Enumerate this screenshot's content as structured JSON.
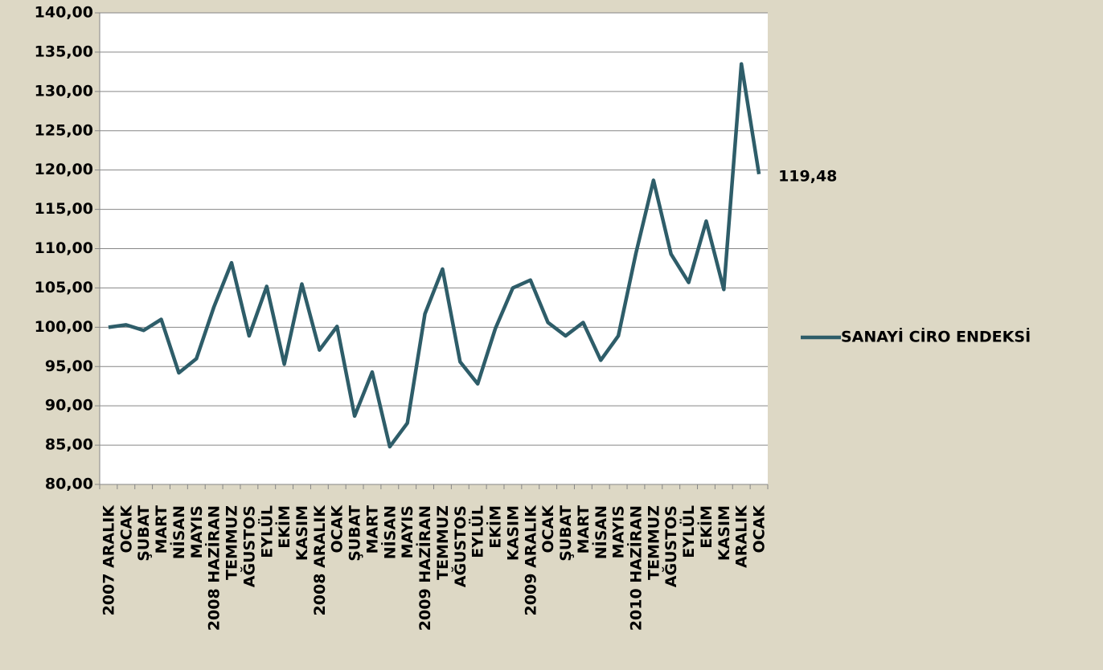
{
  "chart_data": {
    "type": "line",
    "categories": [
      "2007 ARALIK",
      "OCAK",
      "ŞUBAT",
      "MART",
      "NİSAN",
      "MAYIS",
      "2008 HAZİRAN",
      "TEMMUZ",
      "AĞUSTOS",
      "EYLÜL",
      "EKİM",
      "KASIM",
      "2008 ARALIK",
      "OCAK",
      "ŞUBAT",
      "MART",
      "NİSAN",
      "MAYIS",
      "2009 HAZİRAN",
      "TEMMUZ",
      "AĞUSTOS",
      "EYLÜL",
      "EKİM",
      "KASIM",
      "2009 ARALIK",
      "OCAK",
      "ŞUBAT",
      "MART",
      "NİSAN",
      "MAYIS",
      "2010 HAZİRAN",
      "TEMMUZ",
      "AĞUSTOS",
      "EYLÜL",
      "EKİM",
      "KASIM",
      "ARALIK",
      "OCAK"
    ],
    "series": [
      {
        "name": "SANAYİ CİRO ENDEKSİ",
        "color": "#2e5d69",
        "values": [
          100.0,
          100.3,
          99.6,
          101.0,
          94.2,
          96.0,
          102.6,
          108.2,
          98.9,
          105.2,
          95.3,
          105.5,
          97.1,
          100.1,
          88.7,
          94.3,
          84.8,
          87.8,
          101.7,
          107.4,
          95.6,
          92.8,
          99.8,
          105.0,
          106.0,
          100.6,
          98.9,
          100.6,
          95.8,
          98.9,
          109.4,
          118.7,
          109.3,
          105.7,
          113.5,
          104.8,
          133.5,
          119.48
        ],
        "value_labels": {
          "37": "119,48"
        }
      }
    ],
    "ylim": [
      80,
      140
    ],
    "yticks": [
      {
        "value": 80,
        "label": "80,00"
      },
      {
        "value": 85,
        "label": "85,00"
      },
      {
        "value": 90,
        "label": "90,00"
      },
      {
        "value": 95,
        "label": "95,00"
      },
      {
        "value": 100,
        "label": "100,00"
      },
      {
        "value": 105,
        "label": "105,00"
      },
      {
        "value": 110,
        "label": "110,00"
      },
      {
        "value": 115,
        "label": "115,00"
      },
      {
        "value": 120,
        "label": "120,00"
      },
      {
        "value": 125,
        "label": "125,00"
      },
      {
        "value": 130,
        "label": "130,00"
      },
      {
        "value": 135,
        "label": "135,00"
      },
      {
        "value": 140,
        "label": "140,00"
      }
    ],
    "grid": true,
    "legend": "right"
  }
}
